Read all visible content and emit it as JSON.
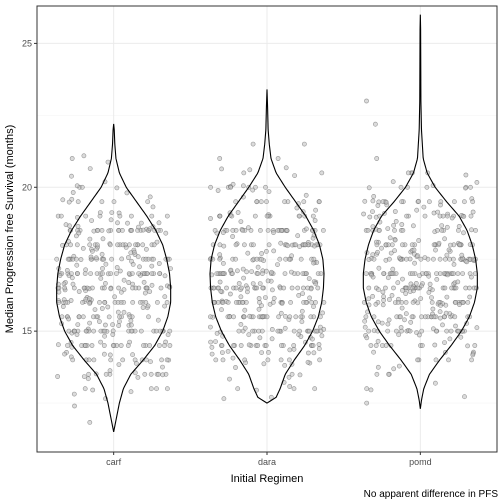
{
  "chart_data": {
    "type": "violin",
    "title": "",
    "xlabel": "Initial Regimen",
    "ylabel": "Median Progression free Survival (months)",
    "caption": "No apparent difference in PFS",
    "categories": [
      "carf",
      "dara",
      "pomd"
    ],
    "ylim": [
      10.8,
      26.3
    ],
    "yticks": [
      15,
      20,
      25
    ],
    "grid": true,
    "points_per_group": 400,
    "groups": [
      {
        "name": "carf",
        "min": 11.5,
        "max": 22.2,
        "density_profile": [
          [
            11.5,
            0.0
          ],
          [
            12.0,
            0.05
          ],
          [
            12.5,
            0.1
          ],
          [
            13.0,
            0.17
          ],
          [
            13.5,
            0.3
          ],
          [
            14.0,
            0.52
          ],
          [
            14.5,
            0.72
          ],
          [
            15.0,
            0.86
          ],
          [
            15.5,
            0.95
          ],
          [
            16.0,
            1.0
          ],
          [
            16.5,
            1.0
          ],
          [
            17.0,
            0.98
          ],
          [
            17.5,
            0.93
          ],
          [
            18.0,
            0.86
          ],
          [
            18.5,
            0.74
          ],
          [
            19.0,
            0.58
          ],
          [
            19.5,
            0.4
          ],
          [
            20.0,
            0.22
          ],
          [
            20.5,
            0.1
          ],
          [
            21.0,
            0.04
          ],
          [
            21.5,
            0.02
          ],
          [
            22.0,
            0.01
          ],
          [
            22.2,
            0.0
          ]
        ]
      },
      {
        "name": "dara",
        "min": 12.5,
        "max": 23.4,
        "density_profile": [
          [
            12.5,
            0.0
          ],
          [
            12.7,
            0.16
          ],
          [
            13.0,
            0.23
          ],
          [
            13.5,
            0.32
          ],
          [
            14.0,
            0.48
          ],
          [
            14.5,
            0.66
          ],
          [
            15.0,
            0.8
          ],
          [
            15.5,
            0.9
          ],
          [
            16.0,
            0.96
          ],
          [
            16.5,
            0.99
          ],
          [
            17.0,
            1.0
          ],
          [
            17.5,
            0.98
          ],
          [
            18.0,
            0.92
          ],
          [
            18.5,
            0.82
          ],
          [
            19.0,
            0.68
          ],
          [
            19.5,
            0.5
          ],
          [
            20.0,
            0.32
          ],
          [
            20.5,
            0.16
          ],
          [
            21.0,
            0.07
          ],
          [
            21.5,
            0.04
          ],
          [
            22.0,
            0.02
          ],
          [
            22.8,
            0.01
          ],
          [
            23.4,
            0.0
          ]
        ]
      },
      {
        "name": "pomd",
        "min": 12.3,
        "max": 26.0,
        "density_profile": [
          [
            12.3,
            0.0
          ],
          [
            12.6,
            0.02
          ],
          [
            13.0,
            0.06
          ],
          [
            13.5,
            0.16
          ],
          [
            14.0,
            0.34
          ],
          [
            14.5,
            0.54
          ],
          [
            15.0,
            0.72
          ],
          [
            15.5,
            0.86
          ],
          [
            16.0,
            0.95
          ],
          [
            16.5,
            1.0
          ],
          [
            17.0,
            1.0
          ],
          [
            17.5,
            0.97
          ],
          [
            18.0,
            0.91
          ],
          [
            18.5,
            0.82
          ],
          [
            19.0,
            0.68
          ],
          [
            19.5,
            0.46
          ],
          [
            20.0,
            0.26
          ],
          [
            20.5,
            0.12
          ],
          [
            21.0,
            0.05
          ],
          [
            22.0,
            0.02
          ],
          [
            23.0,
            0.01
          ],
          [
            24.0,
            0.008
          ],
          [
            25.0,
            0.006
          ],
          [
            25.5,
            0.005
          ],
          [
            26.0,
            0.0
          ]
        ]
      }
    ],
    "colors": {
      "panel_background": "#ffffff",
      "panel_border": "#333333",
      "gridline_major": "#ebebeb",
      "gridline_minor": "#f5f5f5",
      "violin_outline": "#000000",
      "point_fill": "#bdbdbd",
      "point_stroke": "#5a5a5a"
    }
  }
}
